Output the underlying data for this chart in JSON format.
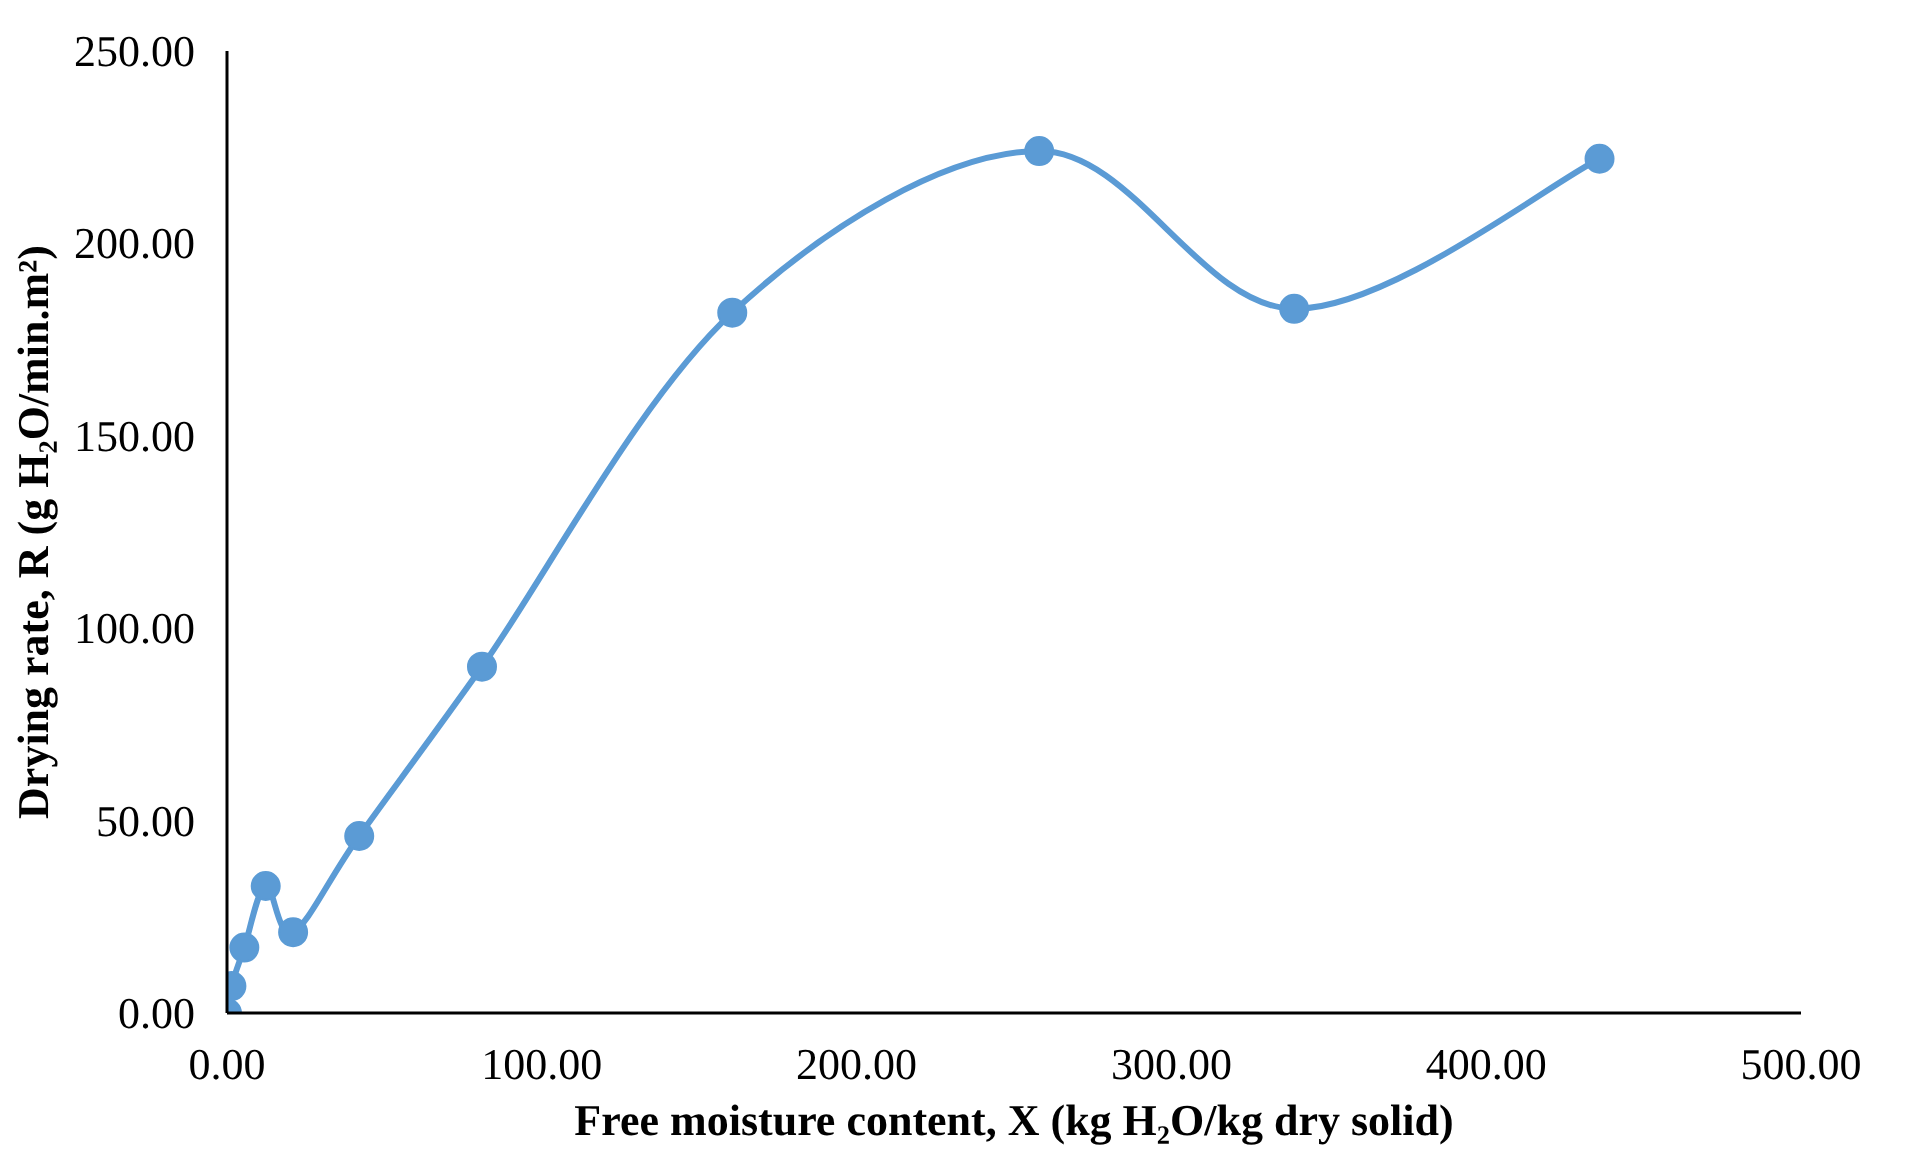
{
  "chart_data": {
    "type": "line",
    "xlabel": "Free moisture content, X (kg H₂O/kg dry solid)",
    "ylabel": "Drying rate, R (g H₂O/min.m²)",
    "x": [
      0,
      1.4,
      5.5,
      12.3,
      21,
      42,
      81,
      160.5,
      258,
      339,
      436
    ],
    "series": [
      {
        "color": "#5b9bd5",
        "values": [
          0,
          7,
          17,
          33,
          21,
          46,
          90,
          182,
          224,
          183,
          222
        ]
      }
    ],
    "xlim": [
      0,
      500
    ],
    "ylim": [
      0,
      250
    ],
    "xticks": [
      {
        "value": 0,
        "label": "0.00"
      },
      {
        "value": 100,
        "label": "100.00"
      },
      {
        "value": 200,
        "label": "200.00"
      },
      {
        "value": 300,
        "label": "300.00"
      },
      {
        "value": 400,
        "label": "400.00"
      },
      {
        "value": 500,
        "label": "500.00"
      }
    ],
    "yticks": [
      {
        "value": 0,
        "label": "0.00"
      },
      {
        "value": 50,
        "label": "50.00"
      },
      {
        "value": 100,
        "label": "100.00"
      },
      {
        "value": 150,
        "label": "150.00"
      },
      {
        "value": 200,
        "label": "200.00"
      },
      {
        "value": 250,
        "label": "250.00"
      }
    ],
    "grid": false,
    "marker": "circle",
    "line_style": "solid"
  }
}
